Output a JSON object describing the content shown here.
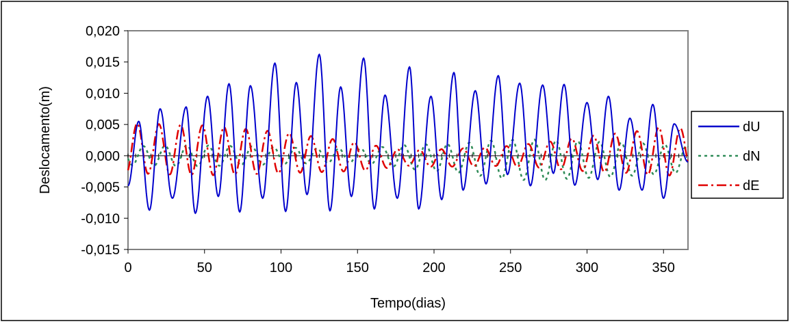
{
  "chart_data": {
    "type": "line",
    "title": "",
    "xlabel": "Tempo(dias)",
    "ylabel": "Deslocamento(m)",
    "xlim": [
      0,
      366
    ],
    "ylim": [
      -0.015,
      0.02
    ],
    "xticks": [
      0,
      50,
      100,
      150,
      200,
      250,
      300,
      350
    ],
    "yticks": [
      -0.015,
      -0.01,
      -0.005,
      0,
      0.005,
      0.01,
      0.015,
      0.02
    ],
    "xtick_labels": [
      "0",
      "50",
      "100",
      "150",
      "200",
      "250",
      "300",
      "350"
    ],
    "ytick_labels": [
      "-0,015",
      "-0,010",
      "-0,005",
      "0,000",
      "0,005",
      "0,010",
      "0,015",
      "0,020"
    ],
    "grid": false,
    "legend_position": "right",
    "series": [
      {
        "name": "dU",
        "color": "#0000cc",
        "style": "solid",
        "period": 14.2,
        "phase_day": 7.5,
        "peaks": [
          [
            7,
            0.0055
          ],
          [
            21,
            0.0075
          ],
          [
            38,
            0.0078
          ],
          [
            52,
            0.0095
          ],
          [
            66,
            0.0115
          ],
          [
            80,
            0.0112
          ],
          [
            96,
            0.0148
          ],
          [
            110,
            0.0117
          ],
          [
            125,
            0.0162
          ],
          [
            139,
            0.011
          ],
          [
            154,
            0.0156
          ],
          [
            168,
            0.0097
          ],
          [
            184,
            0.0142
          ],
          [
            198,
            0.0095
          ],
          [
            213,
            0.0133
          ],
          [
            227,
            0.0104
          ],
          [
            242,
            0.0128
          ],
          [
            256,
            0.0116
          ],
          [
            271,
            0.0113
          ],
          [
            285,
            0.0114
          ],
          [
            300,
            0.0085
          ],
          [
            314,
            0.0095
          ],
          [
            328,
            0.006
          ],
          [
            343,
            0.0082
          ],
          [
            357,
            0.0051
          ]
        ],
        "troughs": [
          [
            0,
            -0.0048
          ],
          [
            14,
            -0.0087
          ],
          [
            29,
            -0.0068
          ],
          [
            44,
            -0.0092
          ],
          [
            59,
            -0.0065
          ],
          [
            73,
            -0.009
          ],
          [
            88,
            -0.0068
          ],
          [
            103,
            -0.0089
          ],
          [
            117,
            -0.0062
          ],
          [
            132,
            -0.0088
          ],
          [
            146,
            -0.0065
          ],
          [
            161,
            -0.0085
          ],
          [
            176,
            -0.0068
          ],
          [
            190,
            -0.0085
          ],
          [
            205,
            -0.007
          ],
          [
            219,
            -0.0055
          ],
          [
            234,
            -0.0045
          ],
          [
            248,
            -0.003
          ],
          [
            263,
            -0.0048
          ],
          [
            278,
            -0.0028
          ],
          [
            292,
            -0.0047
          ],
          [
            307,
            -0.0038
          ],
          [
            321,
            -0.0055
          ],
          [
            336,
            -0.0055
          ],
          [
            350,
            -0.0068
          ],
          [
            366,
            -0.001
          ]
        ]
      },
      {
        "name": "dN",
        "color": "#2e8b57",
        "style": "dotted",
        "period": 14.2,
        "phase_day": 10,
        "envelope": [
          [
            0,
            0.0015
          ],
          [
            40,
            0.0017
          ],
          [
            80,
            0.0015
          ],
          [
            120,
            0.0012
          ],
          [
            150,
            0.0011
          ],
          [
            165,
            0.0014
          ],
          [
            185,
            0.002
          ],
          [
            215,
            0.0023
          ],
          [
            240,
            0.003
          ],
          [
            265,
            0.0033
          ],
          [
            290,
            0.003
          ],
          [
            315,
            0.0028
          ],
          [
            340,
            0.0025
          ],
          [
            366,
            0.0021
          ]
        ],
        "offset": [
          [
            0,
            0
          ],
          [
            160,
            0
          ],
          [
            200,
            -0.0003
          ],
          [
            266,
            -0.0007
          ],
          [
            366,
            -0.0005
          ]
        ]
      },
      {
        "name": "dE",
        "color": "#e00000",
        "style": "dash-dot",
        "period": 14.2,
        "phase_day": 6,
        "envelope": [
          [
            0,
            0.004
          ],
          [
            50,
            0.004
          ],
          [
            100,
            0.0033
          ],
          [
            140,
            0.0025
          ],
          [
            160,
            0.002
          ],
          [
            180,
            0.0012
          ],
          [
            200,
            0.0014
          ],
          [
            240,
            0.0015
          ],
          [
            270,
            0.002
          ],
          [
            300,
            0.0028
          ],
          [
            330,
            0.0033
          ],
          [
            350,
            0.004
          ],
          [
            366,
            0.0035
          ]
        ],
        "offset": [
          [
            0,
            0.0012
          ],
          [
            100,
            0.0005
          ],
          [
            160,
            -0.0003
          ],
          [
            200,
            -0.0004
          ],
          [
            260,
            0.0
          ],
          [
            300,
            0.0003
          ],
          [
            366,
            0.0008
          ]
        ]
      }
    ]
  }
}
